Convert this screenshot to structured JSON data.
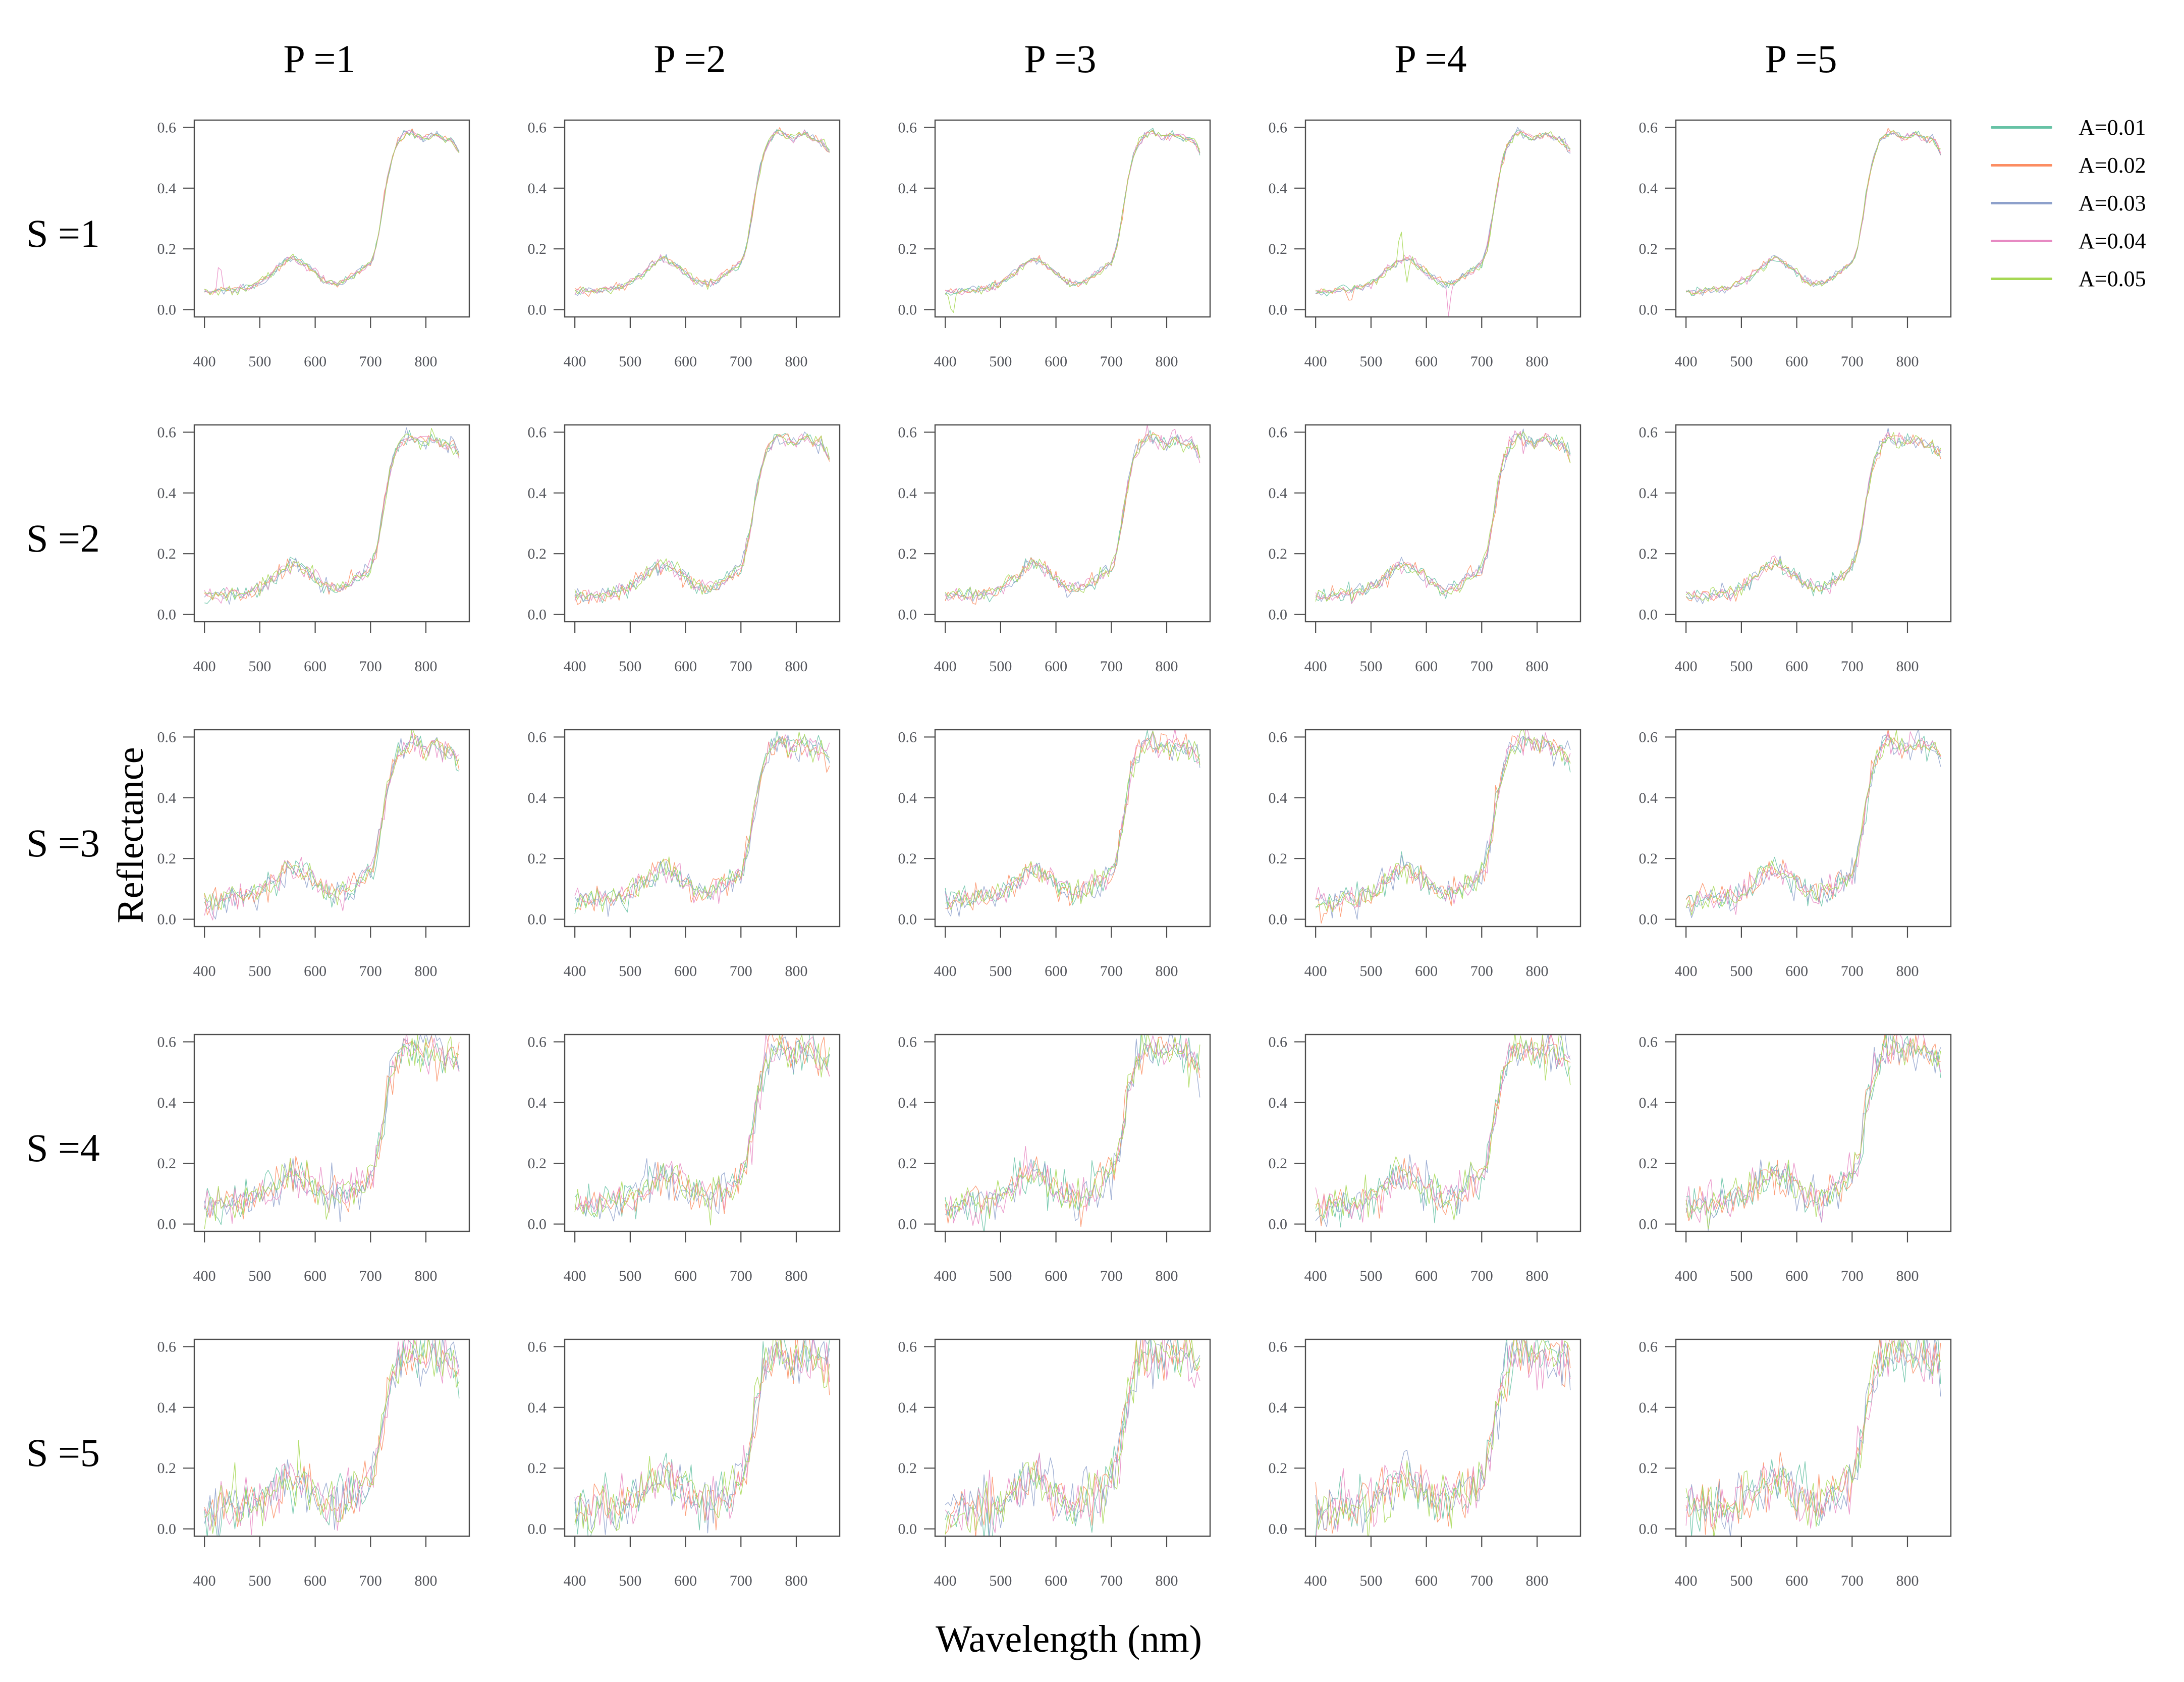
{
  "figure": {
    "x_axis_title": "Wavelength (nm)",
    "y_axis_title": "Reflectance",
    "col_labels": [
      "P =1",
      "P =2",
      "P =3",
      "P =4",
      "P =5"
    ],
    "row_labels": [
      "S =1",
      "S =2",
      "S =3",
      "S =4",
      "S =5"
    ]
  },
  "legend": {
    "items": [
      {
        "label": "A=0.01",
        "color": "#66c2a5"
      },
      {
        "label": "A=0.02",
        "color": "#fc8d62"
      },
      {
        "label": "A=0.03",
        "color": "#8da0cb"
      },
      {
        "label": "A=0.04",
        "color": "#e78ac3"
      },
      {
        "label": "A=0.05",
        "color": "#a6d854"
      }
    ]
  },
  "colors": {
    "axis": "#4d4d4d",
    "tick_label": "#54565c",
    "background": "#ffffff"
  },
  "chart_data": {
    "type": "line",
    "title": "",
    "xlabel": "Wavelength (nm)",
    "ylabel": "Reflectance",
    "grid_rows": 5,
    "grid_cols": 5,
    "row_factor_values": [
      "S =1",
      "S =2",
      "S =3",
      "S =4",
      "S =5"
    ],
    "col_factor_values": [
      "P =1",
      "P =2",
      "P =3",
      "P =4",
      "P =5"
    ],
    "x": {
      "min": 400,
      "max": 860,
      "step": 5,
      "ticks": [
        400,
        500,
        600,
        700,
        800
      ],
      "pad_frac": 0.04
    },
    "y": {
      "min": 0.0,
      "max": 0.6,
      "tick_labels": [
        "0.0",
        "0.2",
        "0.4",
        "0.6"
      ],
      "pad_frac": 0.04
    },
    "series": [
      {
        "name": "A=0.01",
        "color": "#66c2a5"
      },
      {
        "name": "A=0.02",
        "color": "#fc8d62"
      },
      {
        "name": "A=0.03",
        "color": "#8da0cb"
      },
      {
        "name": "A=0.04",
        "color": "#e78ac3"
      },
      {
        "name": "A=0.05",
        "color": "#a6d854"
      }
    ],
    "base_spectrum": {
      "wavelength": [
        400,
        410,
        420,
        430,
        440,
        450,
        460,
        470,
        480,
        490,
        500,
        510,
        520,
        530,
        540,
        550,
        560,
        570,
        580,
        590,
        600,
        610,
        620,
        630,
        640,
        650,
        660,
        670,
        680,
        690,
        700,
        708,
        715,
        722,
        728,
        735,
        742,
        750,
        758,
        766,
        775,
        785,
        795,
        805,
        815,
        825,
        835,
        845,
        852,
        860
      ],
      "reflectance": [
        0.06,
        0.058,
        0.061,
        0.06,
        0.064,
        0.067,
        0.065,
        0.069,
        0.074,
        0.08,
        0.088,
        0.1,
        0.117,
        0.132,
        0.147,
        0.16,
        0.168,
        0.162,
        0.15,
        0.137,
        0.121,
        0.104,
        0.092,
        0.086,
        0.085,
        0.091,
        0.101,
        0.115,
        0.128,
        0.139,
        0.155,
        0.19,
        0.255,
        0.335,
        0.405,
        0.47,
        0.52,
        0.552,
        0.572,
        0.585,
        0.583,
        0.572,
        0.565,
        0.572,
        0.578,
        0.57,
        0.56,
        0.56,
        0.545,
        0.52
      ]
    },
    "noise_sd_by_row": [
      0.007,
      0.013,
      0.022,
      0.032,
      0.046
    ],
    "anomalies": [
      {
        "row": 0,
        "col": 0,
        "series": "A=0.04",
        "wavelength": 427,
        "delta": 0.105,
        "width": 4
      },
      {
        "row": 0,
        "col": 2,
        "series": "A=0.05",
        "wavelength": 413,
        "delta": -0.1,
        "width": 4
      },
      {
        "row": 0,
        "col": 3,
        "series": "A=0.05",
        "wavelength": 553,
        "delta": 0.12,
        "width": 4
      },
      {
        "row": 0,
        "col": 3,
        "series": "A=0.05",
        "wavelength": 565,
        "delta": -0.085,
        "width": 4
      },
      {
        "row": 0,
        "col": 3,
        "series": "A=0.04",
        "wavelength": 641,
        "delta": -0.12,
        "width": 4
      },
      {
        "row": 0,
        "col": 3,
        "series": "A=0.02",
        "wavelength": 462,
        "delta": -0.05,
        "width": 4
      }
    ]
  }
}
